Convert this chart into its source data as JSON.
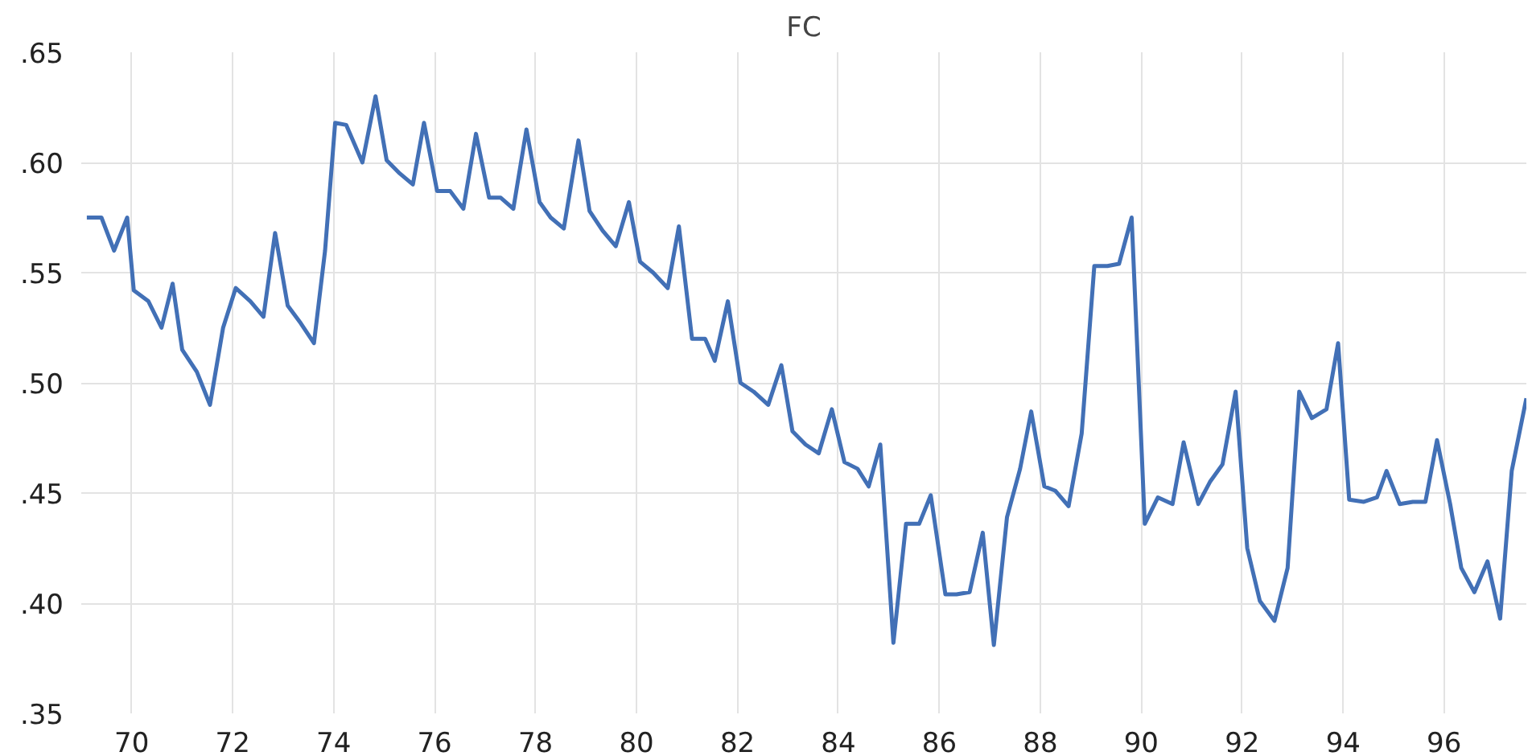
{
  "chart_data": {
    "type": "line",
    "title": "FC",
    "x": [
      69.11,
      69.4,
      69.65,
      69.91,
      70.04,
      70.33,
      70.59,
      70.81,
      71.0,
      71.29,
      71.55,
      71.81,
      72.06,
      72.35,
      72.61,
      72.84,
      73.09,
      73.35,
      73.61,
      73.83,
      74.03,
      74.25,
      74.57,
      74.83,
      75.05,
      75.31,
      75.57,
      75.79,
      76.05,
      76.31,
      76.57,
      76.82,
      77.08,
      77.31,
      77.56,
      77.82,
      78.08,
      78.3,
      78.56,
      78.85,
      79.07,
      79.33,
      79.59,
      79.85,
      80.07,
      80.33,
      80.62,
      80.84,
      81.1,
      81.36,
      81.55,
      81.81,
      82.06,
      82.32,
      82.61,
      82.87,
      83.09,
      83.35,
      83.61,
      83.87,
      84.12,
      84.38,
      84.6,
      84.83,
      85.09,
      85.34,
      85.6,
      85.83,
      86.12,
      86.34,
      86.6,
      86.86,
      87.08,
      87.34,
      87.6,
      87.82,
      88.08,
      88.3,
      88.56,
      88.82,
      89.07,
      89.33,
      89.56,
      89.81,
      90.07,
      90.33,
      90.62,
      90.84,
      91.13,
      91.36,
      91.61,
      91.87,
      92.1,
      92.35,
      92.64,
      92.9,
      93.13,
      93.38,
      93.67,
      93.9,
      94.12,
      94.41,
      94.67,
      94.86,
      95.12,
      95.38,
      95.63,
      95.86,
      96.12,
      96.34,
      96.6,
      96.86,
      97.11,
      97.34,
      97.63
    ],
    "series": [
      {
        "color": "#4270b6",
        "values": [
          0.575,
          0.575,
          0.56,
          0.575,
          0.542,
          0.537,
          0.525,
          0.545,
          0.515,
          0.505,
          0.49,
          0.525,
          0.543,
          0.537,
          0.53,
          0.568,
          0.535,
          0.527,
          0.518,
          0.56,
          0.618,
          0.617,
          0.6,
          0.63,
          0.601,
          0.595,
          0.59,
          0.618,
          0.587,
          0.587,
          0.579,
          0.613,
          0.584,
          0.584,
          0.579,
          0.615,
          0.582,
          0.575,
          0.57,
          0.61,
          0.578,
          0.569,
          0.562,
          0.582,
          0.555,
          0.55,
          0.543,
          0.571,
          0.52,
          0.52,
          0.51,
          0.537,
          0.5,
          0.496,
          0.49,
          0.508,
          0.478,
          0.472,
          0.468,
          0.488,
          0.464,
          0.461,
          0.453,
          0.472,
          0.382,
          0.436,
          0.436,
          0.449,
          0.404,
          0.404,
          0.405,
          0.432,
          0.381,
          0.439,
          0.461,
          0.487,
          0.453,
          0.451,
          0.444,
          0.477,
          0.553,
          0.553,
          0.554,
          0.575,
          0.436,
          0.448,
          0.445,
          0.473,
          0.445,
          0.455,
          0.463,
          0.496,
          0.425,
          0.401,
          0.392,
          0.416,
          0.496,
          0.484,
          0.488,
          0.518,
          0.447,
          0.446,
          0.448,
          0.46,
          0.445,
          0.446,
          0.446,
          0.474,
          0.445,
          0.416,
          0.405,
          0.419,
          0.393,
          0.46,
          0.493
        ]
      }
    ],
    "xlim": [
      69.0,
      97.63
    ],
    "ylim": [
      0.35,
      0.65
    ],
    "xticks": [
      70,
      72,
      74,
      76,
      78,
      80,
      82,
      84,
      86,
      88,
      90,
      92,
      94,
      96
    ],
    "yticks": [
      {
        "value": 0.35,
        "label": ".35"
      },
      {
        "value": 0.4,
        "label": ".40"
      },
      {
        "value": 0.45,
        "label": ".45"
      },
      {
        "value": 0.5,
        "label": ".50"
      },
      {
        "value": 0.55,
        "label": ".55"
      },
      {
        "value": 0.6,
        "label": ".60"
      },
      {
        "value": 0.65,
        "label": ".65"
      }
    ],
    "grid": true
  }
}
